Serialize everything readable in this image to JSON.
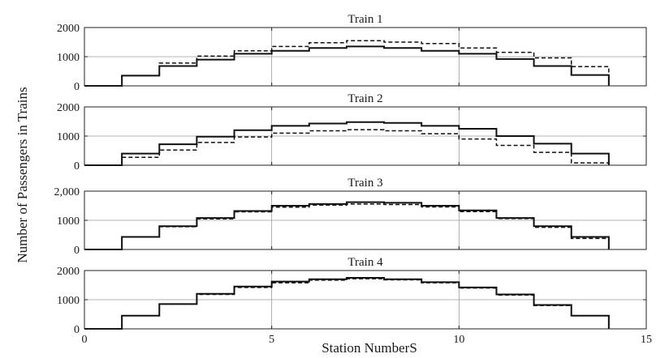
{
  "chart_data": {
    "type": "line",
    "step": "post",
    "shared_xlabel": "Station NumberS",
    "shared_ylabel": "Number of Passengers in Trains",
    "xlim": [
      0,
      15
    ],
    "xticks": [
      "0",
      "5",
      "10",
      "15"
    ],
    "grid": "major",
    "line_colors": {
      "solid": "#111111",
      "dashed": "#111111"
    },
    "stations": [
      0,
      1,
      2,
      3,
      4,
      5,
      6,
      7,
      8,
      9,
      10,
      11,
      12,
      13,
      14
    ],
    "subplots": [
      {
        "title": "Train 1",
        "ylim": [
          0,
          2000
        ],
        "yticks": [
          "0",
          "1000",
          "2000"
        ],
        "series": [
          {
            "style": "solid",
            "values": [
              0,
              350,
              680,
              900,
              1100,
              1200,
              1300,
              1350,
              1300,
              1200,
              1100,
              920,
              680,
              370,
              0
            ]
          },
          {
            "style": "dashed",
            "values": [
              0,
              350,
              780,
              1020,
              1200,
              1350,
              1480,
              1550,
              1500,
              1450,
              1300,
              1150,
              960,
              660,
              0
            ]
          }
        ]
      },
      {
        "title": "Train 2",
        "ylim": [
          0,
          2000
        ],
        "yticks": [
          "0",
          "1000",
          "2000"
        ],
        "series": [
          {
            "style": "solid",
            "values": [
              0,
              400,
              720,
              980,
              1200,
              1350,
              1430,
              1480,
              1450,
              1350,
              1250,
              1000,
              740,
              400,
              0
            ]
          },
          {
            "style": "dashed",
            "values": [
              0,
              270,
              520,
              780,
              970,
              1100,
              1180,
              1220,
              1180,
              1080,
              900,
              680,
              440,
              80,
              0
            ]
          }
        ]
      },
      {
        "title": "Train 3",
        "ylim": [
          0,
          2000
        ],
        "yticks": [
          "0",
          "1000",
          "2,000"
        ],
        "series": [
          {
            "style": "solid",
            "values": [
              0,
              430,
              800,
              1080,
              1320,
              1500,
              1560,
              1620,
              1600,
              1500,
              1340,
              1080,
              800,
              430,
              0
            ]
          },
          {
            "style": "dashed",
            "values": [
              0,
              430,
              780,
              1050,
              1290,
              1450,
              1520,
              1560,
              1540,
              1460,
              1300,
              1060,
              760,
              380,
              0
            ]
          }
        ]
      },
      {
        "title": "Train 4",
        "ylim": [
          0,
          2000
        ],
        "yticks": [
          "0",
          "1000",
          "2000"
        ],
        "series": [
          {
            "style": "solid",
            "values": [
              0,
              450,
              850,
              1200,
              1450,
              1620,
              1700,
              1750,
              1700,
              1600,
              1420,
              1180,
              820,
              450,
              0
            ]
          },
          {
            "style": "dashed",
            "values": [
              0,
              450,
              850,
              1180,
              1420,
              1580,
              1670,
              1720,
              1680,
              1580,
              1400,
              1160,
              800,
              450,
              0
            ]
          }
        ]
      }
    ]
  }
}
